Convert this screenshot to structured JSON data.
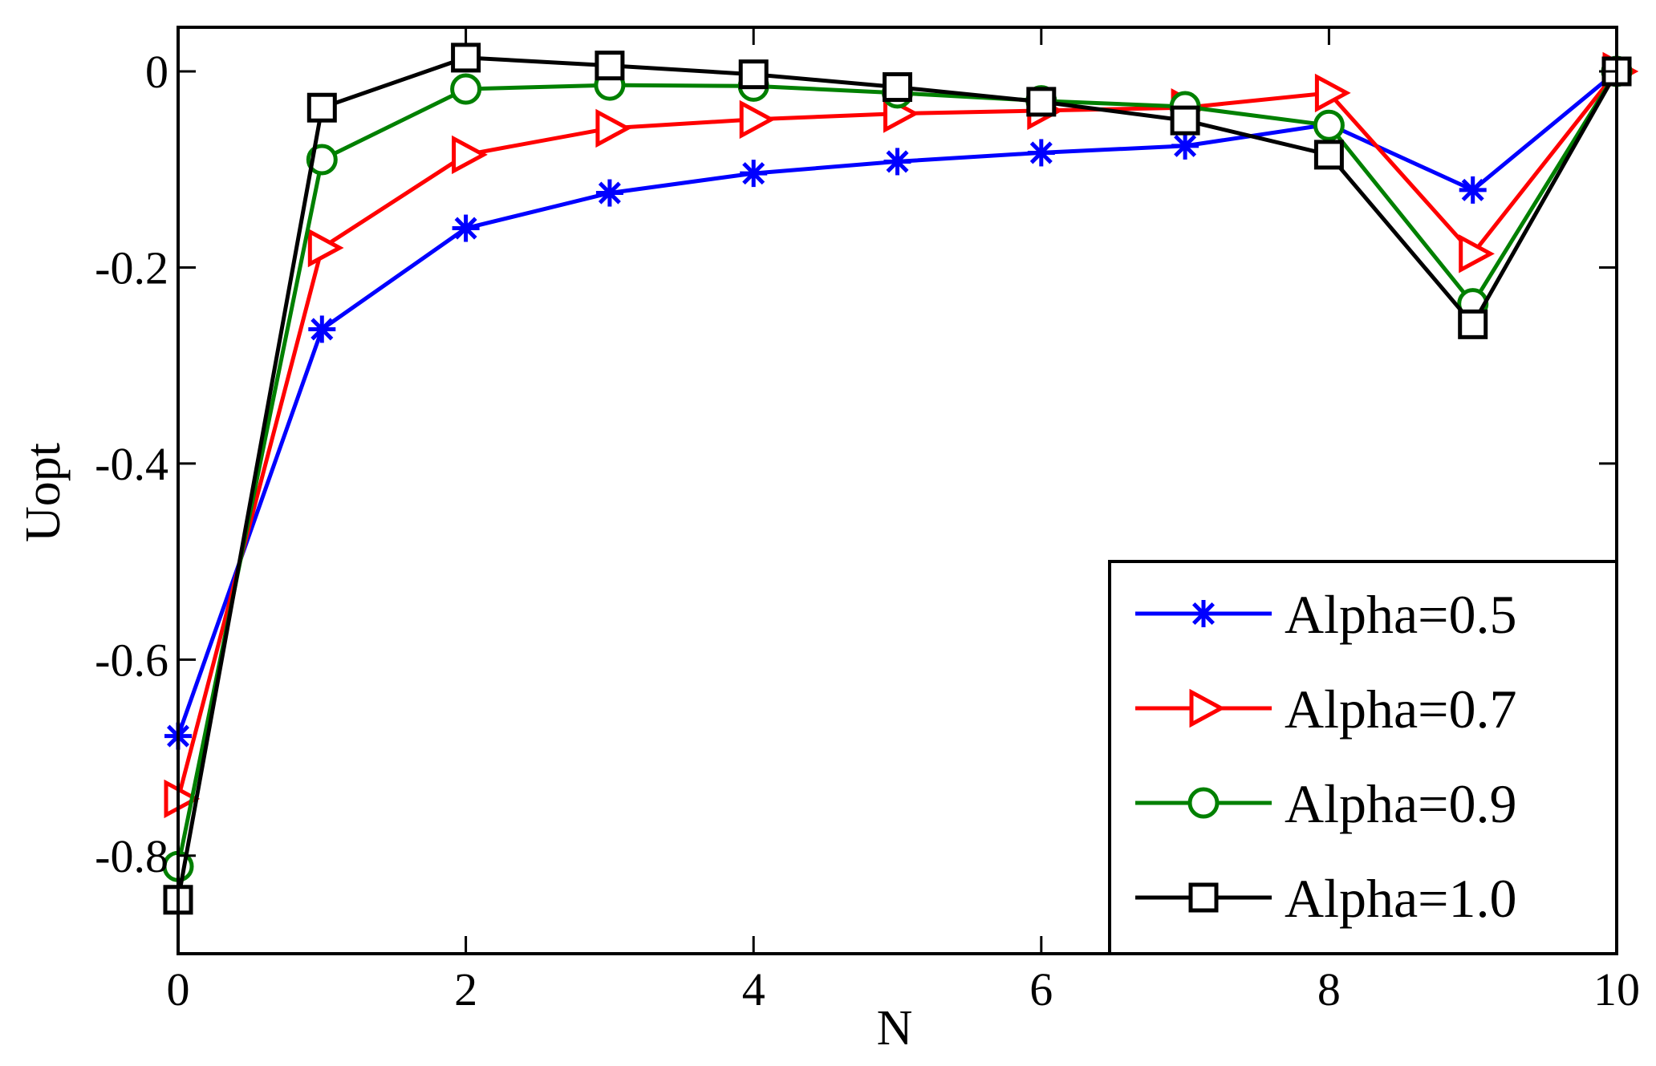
{
  "chart_data": {
    "type": "line",
    "title": "",
    "xlabel": "N",
    "ylabel": "Uopt",
    "xlim": [
      0,
      10
    ],
    "ylim": [
      -0.9,
      0.045
    ],
    "xticks": [
      0,
      2,
      4,
      6,
      8,
      10
    ],
    "xtick_labels": [
      "0",
      "2",
      "4",
      "6",
      "8",
      "10"
    ],
    "yticks": [
      0,
      -0.2,
      -0.4,
      -0.6,
      -0.8
    ],
    "ytick_labels": [
      "0",
      "-0.2",
      "-0.4",
      "-0.6",
      "-0.8"
    ],
    "grid": false,
    "legend_position": "bottom-right",
    "x": [
      0,
      1,
      2,
      3,
      4,
      5,
      6,
      7,
      8,
      9,
      10
    ],
    "series": [
      {
        "name": "Alpha=0.5",
        "color": "#0000ff",
        "marker": "asterisk",
        "values": [
          -0.678,
          -0.263,
          -0.16,
          -0.124,
          -0.104,
          -0.092,
          -0.083,
          -0.076,
          -0.054,
          -0.121,
          0.0
        ]
      },
      {
        "name": "Alpha=0.7",
        "color": "#ff0000",
        "marker": "triangle-right",
        "values": [
          -0.742,
          -0.18,
          -0.085,
          -0.058,
          -0.049,
          -0.043,
          -0.04,
          -0.037,
          -0.022,
          -0.186,
          0.0
        ]
      },
      {
        "name": "Alpha=0.9",
        "color": "#008000",
        "marker": "circle",
        "values": [
          -0.811,
          -0.09,
          -0.018,
          -0.014,
          -0.015,
          -0.022,
          -0.03,
          -0.036,
          -0.055,
          -0.237,
          0.0
        ]
      },
      {
        "name": "Alpha=1.0",
        "color": "#000000",
        "marker": "square",
        "values": [
          -0.845,
          -0.037,
          0.014,
          0.006,
          -0.003,
          -0.016,
          -0.031,
          -0.05,
          -0.085,
          -0.258,
          0.0
        ]
      }
    ]
  }
}
